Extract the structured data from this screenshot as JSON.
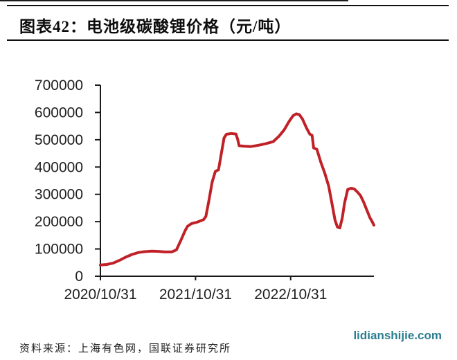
{
  "header": {
    "title": "图表42：电池级碳酸锂价格（元/吨）"
  },
  "footer": {
    "source": "资料来源：上海有色网，国联证券研究所",
    "watermark": "lidianshijie.com"
  },
  "colors": {
    "line": "#c02127",
    "axis": "#1a1a1a",
    "tick_label": "#1f1f1f",
    "watermark": "#2a7e90"
  },
  "chart_data": {
    "type": "line",
    "title": "电池级碳酸锂价格（元/吨）",
    "ylabel": "",
    "xlabel": "",
    "grid": false,
    "legend": false,
    "ylim": [
      0,
      700000
    ],
    "y_ticks": [
      0,
      100000,
      200000,
      300000,
      400000,
      500000,
      600000,
      700000
    ],
    "x_unit": "months_since_2020-10-31",
    "x_range": [
      0,
      34.5
    ],
    "x_ticks": [
      {
        "t": 0,
        "label": "2020/10/31"
      },
      {
        "t": 12,
        "label": "2021/10/31"
      },
      {
        "t": 24,
        "label": "2022/10/31"
      }
    ],
    "series": [
      {
        "name": "电池级碳酸锂价格",
        "color": "#c02127",
        "points": [
          [
            0,
            41000
          ],
          [
            0.8,
            43000
          ],
          [
            1.6,
            48000
          ],
          [
            2.4,
            58000
          ],
          [
            3.2,
            70000
          ],
          [
            4.0,
            80000
          ],
          [
            4.8,
            87000
          ],
          [
            5.6,
            90000
          ],
          [
            6.5,
            92000
          ],
          [
            7.3,
            91000
          ],
          [
            8.1,
            89000
          ],
          [
            9.0,
            89000
          ],
          [
            9.6,
            97000
          ],
          [
            10.2,
            135000
          ],
          [
            10.7,
            168000
          ],
          [
            11.0,
            183000
          ],
          [
            11.5,
            193000
          ],
          [
            12.2,
            198000
          ],
          [
            13.0,
            207000
          ],
          [
            13.3,
            219000
          ],
          [
            13.7,
            280000
          ],
          [
            14.1,
            345000
          ],
          [
            14.5,
            384000
          ],
          [
            14.9,
            390000
          ],
          [
            15.2,
            440000
          ],
          [
            15.6,
            507000
          ],
          [
            15.9,
            520000
          ],
          [
            16.5,
            523000
          ],
          [
            17.1,
            521000
          ],
          [
            17.3,
            503000
          ],
          [
            17.5,
            478000
          ],
          [
            18.2,
            476000
          ],
          [
            19.0,
            475000
          ],
          [
            20.0,
            480000
          ],
          [
            20.9,
            486000
          ],
          [
            21.8,
            493000
          ],
          [
            22.5,
            512000
          ],
          [
            23.2,
            537000
          ],
          [
            23.8,
            567000
          ],
          [
            24.3,
            588000
          ],
          [
            24.7,
            595000
          ],
          [
            25.1,
            592000
          ],
          [
            25.5,
            575000
          ],
          [
            26.0,
            543000
          ],
          [
            26.4,
            521000
          ],
          [
            26.7,
            516000
          ],
          [
            26.9,
            470000
          ],
          [
            27.3,
            465000
          ],
          [
            27.8,
            418000
          ],
          [
            28.3,
            378000
          ],
          [
            28.8,
            330000
          ],
          [
            29.2,
            268000
          ],
          [
            29.6,
            205000
          ],
          [
            29.9,
            180000
          ],
          [
            30.2,
            177000
          ],
          [
            30.5,
            212000
          ],
          [
            30.8,
            268000
          ],
          [
            31.2,
            318000
          ],
          [
            31.6,
            322000
          ],
          [
            32.0,
            320000
          ],
          [
            32.4,
            309000
          ],
          [
            32.8,
            296000
          ],
          [
            33.2,
            272000
          ],
          [
            33.6,
            243000
          ],
          [
            34.0,
            214000
          ],
          [
            34.3,
            199000
          ],
          [
            34.5,
            187000
          ]
        ]
      }
    ]
  }
}
